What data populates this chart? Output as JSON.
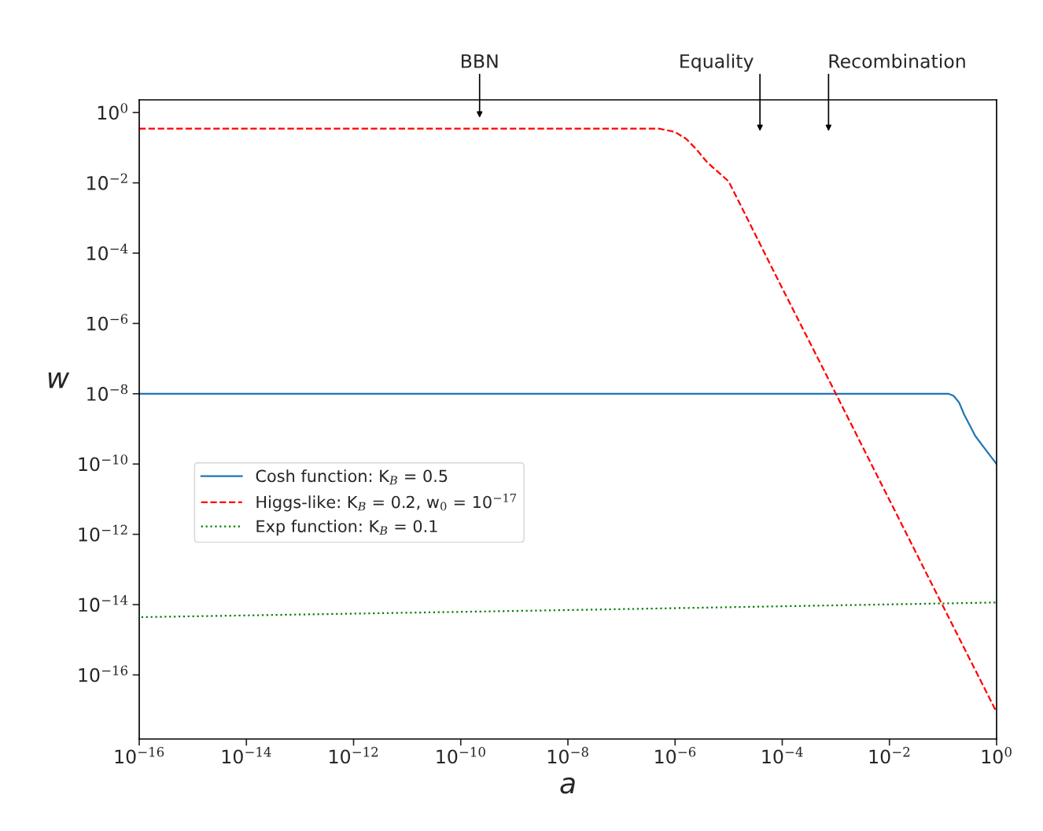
{
  "chart_data": {
    "type": "line",
    "xlabel": "a",
    "ylabel": "w",
    "log": "xy",
    "xlim": [
      1e-16,
      1
    ],
    "ylim": [
      1.5e-18,
      2.3
    ],
    "xticks": [
      {
        "value": 1e-16,
        "label": "10$^{−16}$"
      },
      {
        "value": 1e-14,
        "label": "10$^{−14}$"
      },
      {
        "value": 1e-12,
        "label": "10$^{−12}$"
      },
      {
        "value": 1e-10,
        "label": "10$^{−10}$"
      },
      {
        "value": 1e-08,
        "label": "10$^{−8}$"
      },
      {
        "value": 1e-06,
        "label": "10$^{−6}$"
      },
      {
        "value": 0.0001,
        "label": "10$^{−4}$"
      },
      {
        "value": 0.01,
        "label": "10$^{−2}$"
      },
      {
        "value": 1,
        "label": "10$^{0}$"
      }
    ],
    "yticks": [
      {
        "value": 1,
        "label": "10$^{0}$"
      },
      {
        "value": 0.01,
        "label": "10$^{−2}$"
      },
      {
        "value": 0.0001,
        "label": "10$^{−4}$"
      },
      {
        "value": 1e-06,
        "label": "10$^{−6}$"
      },
      {
        "value": 1e-08,
        "label": "10$^{−8}$"
      },
      {
        "value": 1e-10,
        "label": "10$^{−10}$"
      },
      {
        "value": 1e-12,
        "label": "10$^{−12}$"
      },
      {
        "value": 1e-14,
        "label": "10$^{−14}$"
      },
      {
        "value": 1e-16,
        "label": "10$^{−16}$"
      }
    ],
    "grid": false,
    "legend": "center left",
    "series": [
      {
        "name": "Cosh function: K$_{B}$ = 0.5",
        "color": "#1f77b4",
        "line_style": "solid",
        "x": [
          1e-16,
          1e-08,
          0.0001,
          0.01,
          0.126,
          0.158,
          0.2,
          0.25,
          0.4,
          0.63,
          1
        ],
        "values": [
          1e-08,
          1e-08,
          1e-08,
          1e-08,
          1e-08,
          8.7e-09,
          5.6e-09,
          2.5e-09,
          6.3e-10,
          2.5e-10,
          1e-10
        ]
      },
      {
        "name": "Higgs-like: K$_{B}$ = 0.2, w$_{0}$ = 10$^{−17}$",
        "color": "#ff0000",
        "line_style": "dashed",
        "x": [
          1e-16,
          1e-10,
          1e-07,
          5e-07,
          1e-06,
          1.6e-06,
          2.5e-06,
          4e-06,
          1e-05,
          0.0001,
          0.001,
          0.01,
          0.1,
          1
        ],
        "values": [
          0.35,
          0.35,
          0.35,
          0.35,
          0.28,
          0.18,
          0.09,
          0.038,
          0.011,
          1e-05,
          1e-08,
          9.5e-12,
          9e-15,
          8.7e-18
        ]
      },
      {
        "name": "Exp function: K$_{B}$ = 0.1",
        "color": "#008000",
        "line_style": "dotted",
        "x": [
          1.1e-16,
          1e-08,
          1
        ],
        "values": [
          4.4e-15,
          7e-15,
          1.15e-14
        ]
      }
    ],
    "annotations": [
      "BBN",
      "Equality",
      "Recombination"
    ]
  }
}
